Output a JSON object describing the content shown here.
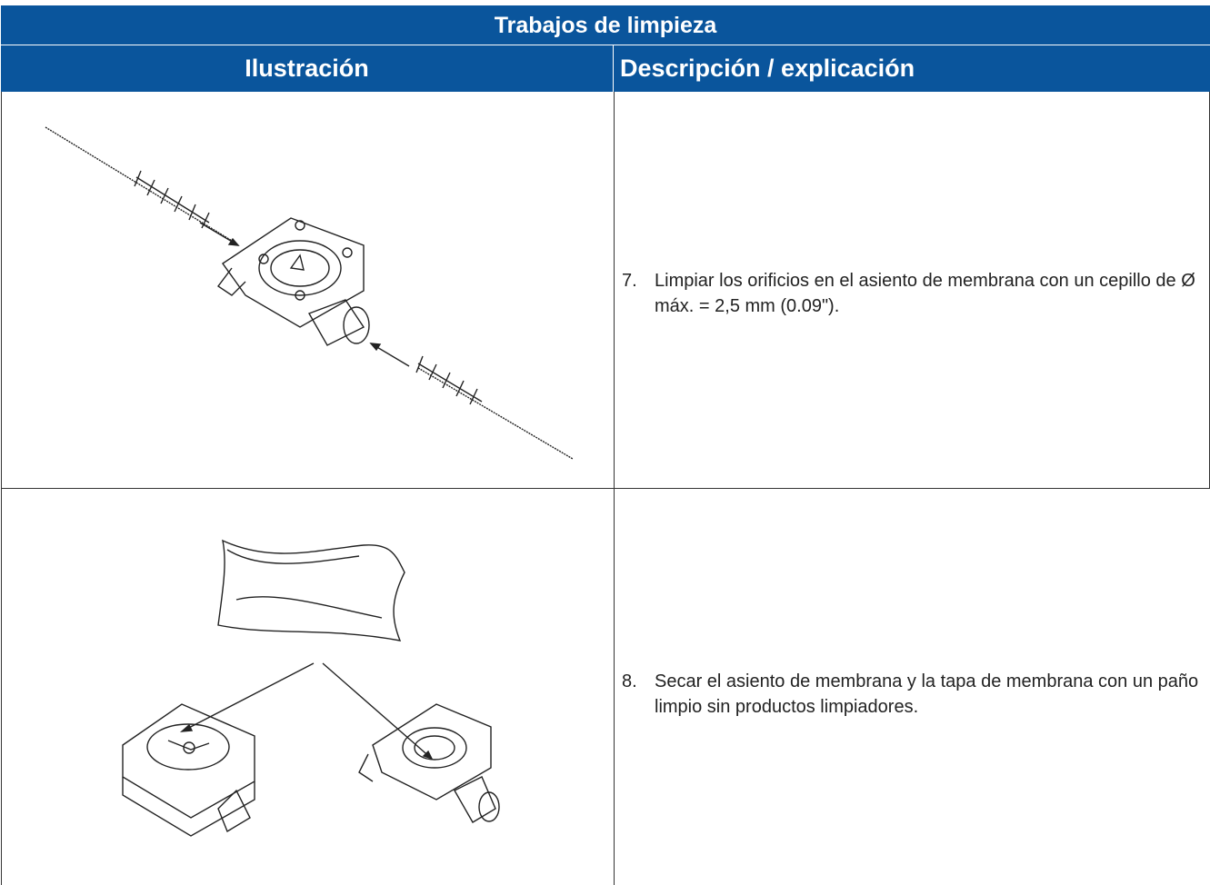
{
  "table": {
    "title": "Trabajos de limpieza",
    "headers": [
      "Ilustración",
      "Descripción / explicación"
    ],
    "rows": [
      {
        "step": "7.",
        "text": "Limpiar los orificios en el asiento de membrana con un cepillo de Ø máx. = 2,5 mm (0.09\")."
      },
      {
        "step": "8.",
        "text": "Secar el asiento de membrana y la tapa de membrana con un paño limpio sin productos limpiadores."
      }
    ]
  }
}
